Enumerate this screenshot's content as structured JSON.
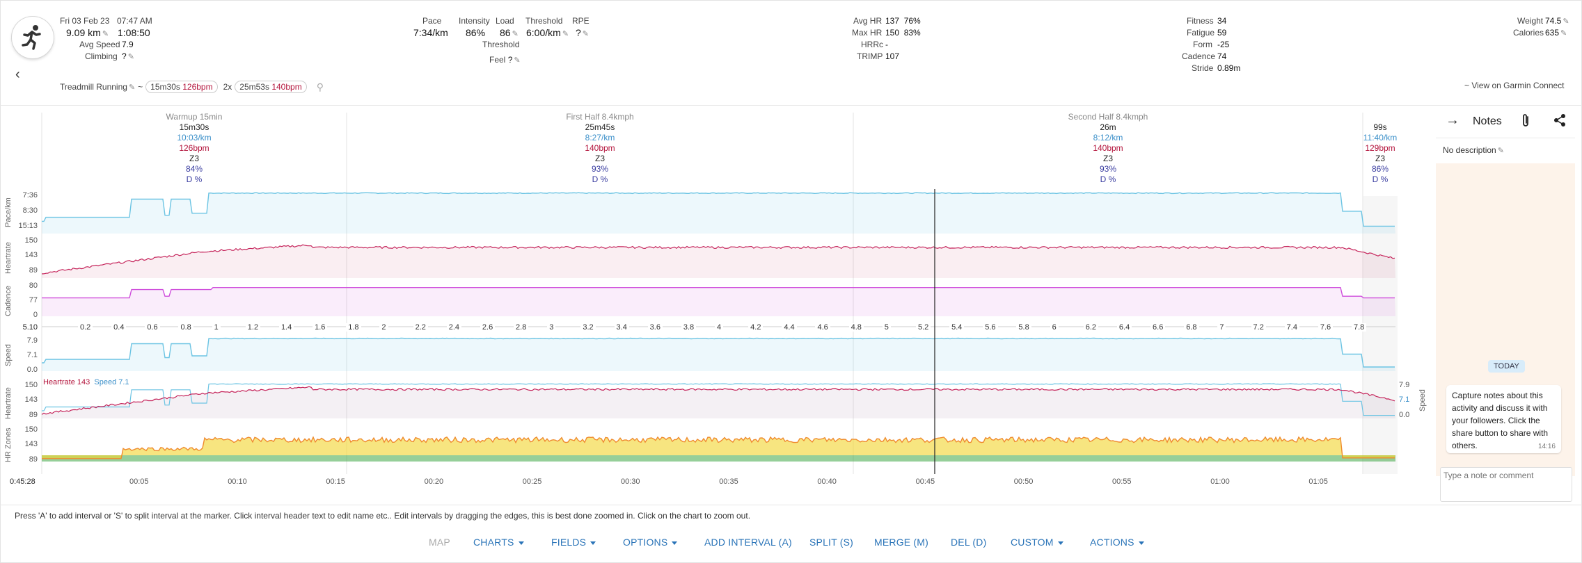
{
  "summary": {
    "date": "Fri 03 Feb 23",
    "time": "07:47 AM",
    "distance": "9.09 km",
    "duration": "1:08:50",
    "avg_speed_label": "Avg Speed",
    "avg_speed": "7.9",
    "climbing_label": "Climbing",
    "climbing": "?"
  },
  "metrics": {
    "pace_label": "Pace",
    "pace": "7:34/km",
    "intensity_label": "Intensity",
    "intensity": "86%",
    "load_label": "Load",
    "load": "86",
    "threshold_label": "Threshold",
    "threshold": "6:00/km",
    "rpe_label": "RPE",
    "rpe": "?",
    "threshold2_label": "Threshold",
    "feel_label": "Feel",
    "feel": "?"
  },
  "hr": {
    "avg_label": "Avg HR",
    "avg": "137",
    "avg_pct": "76%",
    "max_label": "Max HR",
    "max": "150",
    "max_pct": "83%",
    "hrrc_label": "HRRc",
    "hrrc": "-",
    "trimp_label": "TRIMP",
    "trimp": "107"
  },
  "fitness": {
    "fitness_label": "Fitness",
    "fitness": "34",
    "fatigue_label": "Fatigue",
    "fatigue": "59",
    "form_label": "Form",
    "form": "-25",
    "cadence_label": "Cadence",
    "cadence": "74",
    "stride_label": "Stride",
    "stride": "0.89m"
  },
  "body": {
    "weight_label": "Weight",
    "weight": "74.5",
    "calories_label": "Calories",
    "calories": "635"
  },
  "activity": {
    "type": "Treadmill Running",
    "tilde": "~",
    "chip1_time": "15m30s",
    "chip1_bpm": "126bpm",
    "reps": "2x",
    "chip2_time": "25m53s",
    "chip2_bpm": "140bpm",
    "garmin_link": "~ View on Garmin Connect"
  },
  "intervals": [
    {
      "name": "Warmup 15min",
      "duration": "15m30s",
      "pace": "10:03/km",
      "hr": "126bpm",
      "zone": "Z3",
      "pct": "84%",
      "d": "D %"
    },
    {
      "name": "First Half 8.4kmph",
      "duration": "25m45s",
      "pace": "8:27/km",
      "hr": "140bpm",
      "zone": "Z3",
      "pct": "93%",
      "d": "D %"
    },
    {
      "name": "Second Half 8.4kmph",
      "duration": "26m",
      "pace": "8:12/km",
      "hr": "140bpm",
      "zone": "Z3",
      "pct": "93%",
      "d": "D %"
    },
    {
      "name": "",
      "duration": "99s",
      "pace": "11:40/km",
      "hr": "129bpm",
      "zone": "Z3",
      "pct": "86%",
      "d": "D %"
    }
  ],
  "axes": {
    "pace": {
      "label": "Pace/km",
      "top": "7:36",
      "mid": "8:30",
      "bot": "15:13"
    },
    "heartrate": {
      "label": "Heartrate",
      "top": "150",
      "mid": "143",
      "bot": "89"
    },
    "cadence": {
      "label": "Cadence",
      "top": "80",
      "mid": "77",
      "bot": "0"
    },
    "speed": {
      "label": "Speed",
      "top": "7.9",
      "mid": "7.1",
      "bot": "0.0"
    },
    "hr2": {
      "label": "Heartrate",
      "top": "150",
      "mid": "143",
      "bot": "89"
    },
    "speed_right": {
      "label": "Speed",
      "top": "7.9",
      "mid": "7.1",
      "bot": "0.0"
    },
    "zones": {
      "label": "HR Zones",
      "top": "150",
      "mid": "143",
      "bot": "89"
    },
    "legend_hr": "Heartrate 143",
    "legend_speed": "Speed 7.1"
  },
  "distance_axis": {
    "start": "5.10",
    "ticks": [
      "0.2",
      "0.4",
      "0.6",
      "0.8",
      "1",
      "1.2",
      "1.4",
      "1.6",
      "1.8",
      "2",
      "2.2",
      "2.4",
      "2.6",
      "2.8",
      "3",
      "3.2",
      "3.4",
      "3.6",
      "3.8",
      "4",
      "4.2",
      "4.4",
      "4.6",
      "4.8",
      "5",
      "5.2",
      "5.4",
      "5.6",
      "5.8",
      "6",
      "6.2",
      "6.4",
      "6.6",
      "6.8",
      "7",
      "7.2",
      "7.4",
      "7.6",
      "7.8"
    ]
  },
  "time_axis": {
    "cursor": "0:45:28",
    "ticks": [
      "00:05",
      "00:10",
      "00:15",
      "00:20",
      "00:25",
      "00:30",
      "00:35",
      "00:40",
      "00:45",
      "00:50",
      "00:55",
      "01:00",
      "01:05"
    ]
  },
  "notes": {
    "title": "Notes",
    "description": "No description",
    "today": "TODAY",
    "bubble_text": "Capture notes about this activity and discuss it with your followers. Click the share button to share with others.",
    "bubble_time": "14:16",
    "placeholder": "Type a note or comment"
  },
  "help_text": "Press 'A' to add interval or 'S' to split interval at the marker. Click interval header text to edit name etc.. Edit intervals by dragging the edges, this is best done zoomed in. Click on the chart to zoom out.",
  "toolbar": {
    "map": "MAP",
    "charts": "CHARTS",
    "fields": "FIELDS",
    "options": "OPTIONS",
    "add_interval": "ADD INTERVAL (A)",
    "split": "SPLIT (S)",
    "merge": "MERGE (M)",
    "del": "DEL (D)",
    "custom": "CUSTOM",
    "actions": "ACTIONS"
  },
  "colors": {
    "pace": "#6cc4e3",
    "heartrate": "#c5235a",
    "cadence": "#cf4fdc",
    "zone_green": "#3fa846",
    "zone_yellow": "#f2d42b",
    "zone_orange": "#ef8a2d",
    "link": "#2a74b8"
  }
}
